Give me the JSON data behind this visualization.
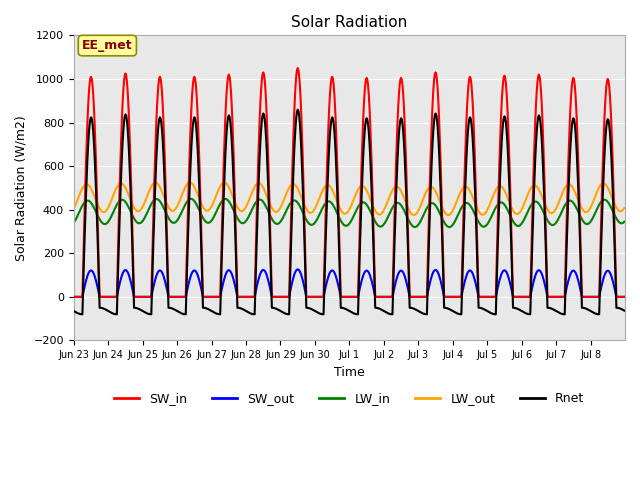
{
  "title": "Solar Radiation",
  "xlabel": "Time",
  "ylabel": "Solar Radiation (W/m2)",
  "ylim": [
    -200,
    1200
  ],
  "yticks": [
    -200,
    0,
    200,
    400,
    600,
    800,
    1000,
    1200
  ],
  "annotation_text": "EE_met",
  "annotation_color": "#8B0000",
  "annotation_bg": "#FFFFA0",
  "annotation_border": "#8B8B00",
  "background_color": "#E8E8E8",
  "grid_color": "white",
  "series": {
    "SW_in": {
      "color": "red",
      "lw": 1.5
    },
    "SW_out": {
      "color": "blue",
      "lw": 1.5
    },
    "LW_in": {
      "color": "green",
      "lw": 1.5
    },
    "LW_out": {
      "color": "orange",
      "lw": 1.5
    },
    "Rnet": {
      "color": "black",
      "lw": 1.5
    }
  },
  "xtick_labels": [
    "Jun 23",
    "Jun 24",
    "Jun 25",
    "Jun 26",
    "Jun 27",
    "Jun 28",
    "Jun 29",
    "Jun 30",
    "Jul 1",
    "Jul 2",
    "Jul 3",
    "Jul 4",
    "Jul 5",
    "Jul 6",
    "Jul 7",
    "Jul 8"
  ],
  "num_days": 16,
  "sw_amplitudes": [
    1010,
    1025,
    1010,
    1010,
    1020,
    1030,
    1050,
    1010,
    1005,
    1005,
    1030,
    1010,
    1015,
    1020,
    1005,
    1000
  ]
}
